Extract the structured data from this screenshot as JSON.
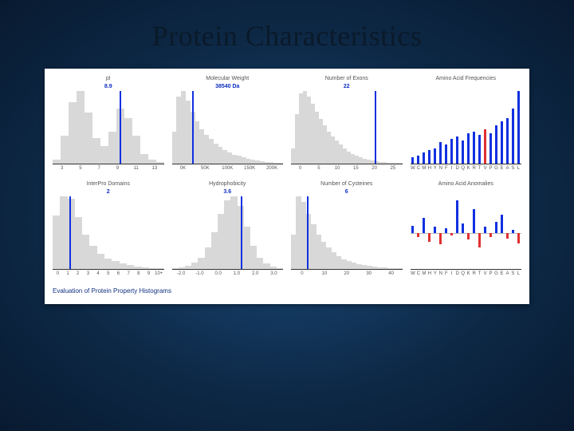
{
  "slide": {
    "title": "Protein Characteristics",
    "footer": "Evaluation of Protein Property Histograms",
    "title_color": "#0a1a2a",
    "title_fontsize": 36,
    "background": "#113a66"
  },
  "chart": {
    "background": "#ffffff",
    "bar_color": "#d8d8d8",
    "marker_color": "#1030e0",
    "pos_color": "#1030e0",
    "neg_color": "#e03030",
    "axis_color": "#333333",
    "label_color": "#555555",
    "panel_title_fontsize": 7,
    "panel_value_fontsize": 7,
    "axis_label_fontsize": 6
  },
  "panels": [
    {
      "title": "pI",
      "value": "8.9",
      "type": "histogram",
      "bars": [
        5,
        35,
        78,
        92,
        65,
        32,
        22,
        40,
        70,
        58,
        35,
        12,
        5,
        2
      ],
      "marker_pos": 0.6,
      "xticks": [
        "3",
        "5",
        "7",
        "9",
        "11",
        "13"
      ]
    },
    {
      "title": "Molecular Weight",
      "value": "38540 Da",
      "type": "histogram",
      "bars": [
        42,
        88,
        95,
        82,
        68,
        55,
        45,
        38,
        32,
        26,
        22,
        18,
        15,
        12,
        10,
        8,
        6,
        5,
        4,
        3,
        2,
        2,
        1,
        1
      ],
      "marker_pos": 0.18,
      "xticks": [
        "0K",
        "50K",
        "100K",
        "150K",
        "200K"
      ]
    },
    {
      "title": "Number of Exons",
      "value": "22",
      "type": "histogram",
      "bars": [
        20,
        65,
        92,
        95,
        88,
        78,
        68,
        58,
        50,
        42,
        36,
        30,
        25,
        20,
        16,
        13,
        10,
        8,
        6,
        5,
        4,
        3,
        2,
        2,
        1,
        1,
        1,
        1
      ],
      "marker_pos": 0.75,
      "xticks": [
        "0",
        "5",
        "10",
        "15",
        "20",
        "25"
      ]
    },
    {
      "title": "Amino Acid Frequencies",
      "value": "",
      "type": "aa_freq",
      "aa_labels": [
        "W",
        "C",
        "M",
        "H",
        "Y",
        "N",
        "F",
        "I",
        "D",
        "Q",
        "K",
        "R",
        "T",
        "V",
        "P",
        "G",
        "E",
        "A",
        "S",
        "L"
      ],
      "values": [
        8,
        10,
        15,
        18,
        20,
        28,
        25,
        32,
        35,
        30,
        40,
        42,
        38,
        45,
        40,
        50,
        55,
        60,
        72,
        95
      ],
      "highlight_idx": [
        13
      ],
      "highlight_color": "#e03030"
    },
    {
      "title": "InterPro Domains",
      "value": "2",
      "type": "histogram",
      "bars": [
        70,
        95,
        92,
        68,
        45,
        30,
        20,
        14,
        10,
        7,
        5,
        3,
        2,
        1,
        1
      ],
      "marker_pos": 0.15,
      "xticks": [
        "0",
        "1",
        "2",
        "3",
        "4",
        "5",
        "6",
        "7",
        "8",
        "9",
        "10+"
      ]
    },
    {
      "title": "Hydrophobicity",
      "value": "3.6",
      "type": "histogram",
      "bars": [
        1,
        2,
        4,
        8,
        15,
        28,
        48,
        72,
        90,
        95,
        82,
        55,
        30,
        15,
        7,
        3,
        1
      ],
      "marker_pos": 0.62,
      "xticks": [
        "-2.0",
        "-1.0",
        "0.0",
        "1.0",
        "2.0",
        "3.0"
      ]
    },
    {
      "title": "Number of Cysteines",
      "value": "6",
      "type": "histogram",
      "bars": [
        45,
        95,
        88,
        72,
        58,
        45,
        35,
        28,
        22,
        17,
        13,
        10,
        8,
        6,
        5,
        4,
        3,
        2,
        2,
        1,
        1,
        1
      ],
      "marker_pos": 0.14,
      "xticks": [
        "0",
        "10",
        "20",
        "30",
        "40"
      ]
    },
    {
      "title": "Amino Acid Anomalies",
      "value": "",
      "type": "aa_anom",
      "aa_labels": [
        "W",
        "C",
        "M",
        "H",
        "Y",
        "N",
        "F",
        "I",
        "D",
        "Q",
        "K",
        "R",
        "T",
        "V",
        "P",
        "G",
        "E",
        "A",
        "S",
        "L"
      ],
      "values": [
        12,
        -8,
        25,
        -15,
        10,
        -20,
        8,
        -5,
        55,
        15,
        -12,
        40,
        -25,
        10,
        -8,
        18,
        30,
        -10,
        5,
        -18
      ]
    }
  ]
}
